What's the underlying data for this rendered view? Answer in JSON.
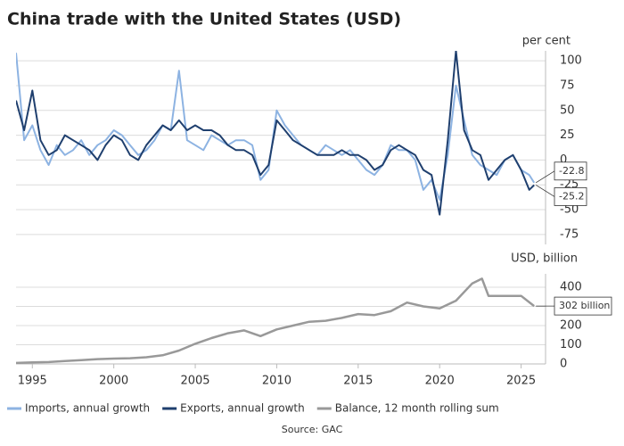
{
  "chart_data": {
    "type": "line",
    "title": "China trade with the United States (USD)",
    "source": "Source: GAC",
    "ylabel": "per cent",
    "y2label": "USD, billion",
    "xlim": [
      1994,
      2026.5
    ],
    "xticks": [
      1995,
      2000,
      2005,
      2010,
      2015,
      2020,
      2025
    ],
    "ylim": [
      -85,
      110
    ],
    "yticks": [
      -75,
      -50,
      -25,
      0,
      25,
      50,
      75,
      100
    ],
    "y2lim": [
      0,
      470
    ],
    "y2ticks": [
      0,
      100,
      200,
      300,
      400
    ],
    "grid": true,
    "legend": "bottom",
    "series": [
      {
        "name": "Imports, annual growth",
        "color": "#8db3e2",
        "end_label": true,
        "x": [
          1994,
          1994.5,
          1995,
          1995.5,
          1996,
          1996.5,
          1997,
          1997.5,
          1998,
          1998.5,
          1999,
          1999.5,
          2000,
          2000.5,
          2001,
          2001.5,
          2002,
          2002.5,
          2003,
          2003.5,
          2004,
          2004.5,
          2005,
          2005.5,
          2006,
          2006.5,
          2007,
          2007.5,
          2008,
          2008.5,
          2009,
          2009.5,
          2010,
          2010.5,
          2011,
          2011.5,
          2012,
          2012.5,
          2013,
          2013.5,
          2014,
          2014.5,
          2015,
          2015.5,
          2016,
          2016.5,
          2017,
          2017.5,
          2018,
          2018.5,
          2019,
          2019.5,
          2020,
          2020.5,
          2021,
          2021.5,
          2022,
          2022.5,
          2023,
          2023.5,
          2024,
          2024.5,
          2025,
          2025.5,
          2025.8
        ],
        "values": [
          108,
          20,
          35,
          10,
          -5,
          15,
          5,
          10,
          20,
          5,
          15,
          20,
          30,
          25,
          15,
          5,
          10,
          20,
          35,
          30,
          90,
          20,
          15,
          10,
          25,
          20,
          15,
          20,
          20,
          15,
          -20,
          -10,
          50,
          35,
          25,
          15,
          10,
          5,
          15,
          10,
          5,
          10,
          0,
          -10,
          -15,
          -5,
          15,
          10,
          10,
          0,
          -30,
          -20,
          -40,
          5,
          75,
          40,
          5,
          -5,
          -10,
          -15,
          0,
          5,
          -10,
          -15,
          -22.8
        ]
      },
      {
        "name": "Exports, annual growth",
        "color": "#1f3f6e",
        "end_label": true,
        "x": [
          1994,
          1994.5,
          1995,
          1995.5,
          1996,
          1996.5,
          1997,
          1997.5,
          1998,
          1998.5,
          1999,
          1999.5,
          2000,
          2000.5,
          2001,
          2001.5,
          2002,
          2002.5,
          2003,
          2003.5,
          2004,
          2004.5,
          2005,
          2005.5,
          2006,
          2006.5,
          2007,
          2007.5,
          2008,
          2008.5,
          2009,
          2009.5,
          2010,
          2010.5,
          2011,
          2011.5,
          2012,
          2012.5,
          2013,
          2013.5,
          2014,
          2014.5,
          2015,
          2015.5,
          2016,
          2016.5,
          2017,
          2017.5,
          2018,
          2018.5,
          2019,
          2019.5,
          2020,
          2020.5,
          2021,
          2021.5,
          2022,
          2022.5,
          2023,
          2023.5,
          2024,
          2024.5,
          2025,
          2025.5,
          2025.8
        ],
        "values": [
          60,
          30,
          70,
          20,
          5,
          10,
          25,
          20,
          15,
          10,
          0,
          15,
          25,
          20,
          5,
          0,
          15,
          25,
          35,
          30,
          40,
          30,
          35,
          30,
          30,
          25,
          15,
          10,
          10,
          5,
          -15,
          -5,
          40,
          30,
          20,
          15,
          10,
          5,
          5,
          5,
          10,
          5,
          5,
          0,
          -10,
          -5,
          10,
          15,
          10,
          5,
          -10,
          -15,
          -55,
          20,
          110,
          30,
          10,
          5,
          -20,
          -10,
          0,
          5,
          -10,
          -30,
          -25.2
        ]
      },
      {
        "name": "Balance, 12 month rolling sum",
        "color": "#999999",
        "axis": "y2",
        "x": [
          1994,
          1995,
          1996,
          1997,
          1998,
          1999,
          2000,
          2001,
          2002,
          2003,
          2004,
          2005,
          2006,
          2007,
          2008,
          2009,
          2010,
          2011,
          2012,
          2013,
          2014,
          2015,
          2016,
          2017,
          2018,
          2019,
          2020,
          2021,
          2022,
          2022.6,
          2023,
          2024,
          2025,
          2025.8
        ],
        "values": [
          5,
          8,
          10,
          15,
          20,
          25,
          28,
          30,
          35,
          45,
          70,
          105,
          135,
          160,
          175,
          145,
          180,
          200,
          220,
          225,
          240,
          260,
          255,
          275,
          320,
          300,
          290,
          330,
          420,
          445,
          355,
          355,
          355,
          302
        ],
        "value_labels": [
          null,
          null,
          null,
          null,
          null,
          null,
          null,
          null,
          null,
          null,
          null,
          null,
          null,
          null,
          null,
          null,
          null,
          null,
          null,
          null,
          null,
          null,
          null,
          null,
          null,
          null,
          null,
          null,
          null,
          null,
          null,
          null,
          null,
          "302 billion"
        ]
      }
    ]
  }
}
